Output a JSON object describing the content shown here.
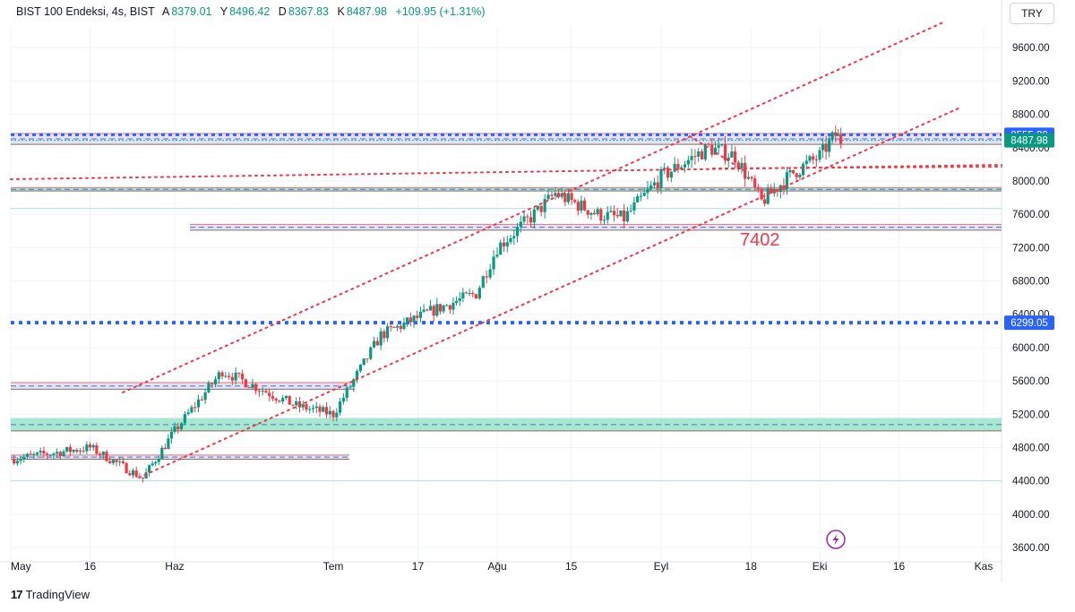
{
  "legend": {
    "symbol": "BIST 100 Endeksi, 4s, BIST",
    "open_label": "A",
    "open": "8379.01",
    "high_label": "Y",
    "high": "8496.42",
    "low_label": "D",
    "low": "8367.83",
    "close_label": "K",
    "close": "8487.98",
    "change": "+109.95 (+1.31%)"
  },
  "currency": "TRY",
  "brand": {
    "logo": "17",
    "name": "TradingView"
  },
  "price_tags": [
    {
      "label": "8555.39",
      "value": 8555.39,
      "color": "#2962ff"
    },
    {
      "label": "8487.98",
      "value": 8487.98,
      "color": "#089981"
    },
    {
      "label": "6299.05",
      "value": 6299.05,
      "color": "#2962ff"
    }
  ],
  "annotation": {
    "text": "7402",
    "color": "#f23645"
  },
  "colors": {
    "up": "#089981",
    "down": "#f23645",
    "zone_fill": "#80e0c0",
    "level_blue": "#2962ff",
    "trend_red": "#f23645"
  },
  "chart_data": {
    "type": "candlestick",
    "title": "BIST 100 Endeksi, 4s, BIST",
    "ylim": [
      3450,
      9850
    ],
    "y_ticks": [
      "9600.00",
      "9200.00",
      "8800.00",
      "8400.00",
      "8000.00",
      "7600.00",
      "7200.00",
      "6800.00",
      "6400.00",
      "6000.00",
      "5600.00",
      "5200.00",
      "4800.00",
      "4400.00",
      "4000.00",
      "3600.00"
    ],
    "x_ticks": [
      "May",
      "16",
      "Haz",
      "Tem",
      "17",
      "Ağu",
      "15",
      "Eyl",
      "18",
      "Eki",
      "16",
      "Kas"
    ],
    "key_points": [
      {
        "date": "May",
        "price": 4660
      },
      {
        "date": "May 16",
        "price": 4800
      },
      {
        "date": "May 26",
        "price": 4430
      },
      {
        "date": "Haz",
        "price": 5000
      },
      {
        "date": "Haz 10",
        "price": 5720
      },
      {
        "date": "Haz 24",
        "price": 5300
      },
      {
        "date": "Tem",
        "price": 5200
      },
      {
        "date": "Tem 10",
        "price": 6150
      },
      {
        "date": "Tem 20",
        "price": 6450
      },
      {
        "date": "Tem 28",
        "price": 6650
      },
      {
        "date": "Ağu",
        "price": 7200
      },
      {
        "date": "Ağu 8",
        "price": 7600
      },
      {
        "date": "Ağu 12",
        "price": 7850
      },
      {
        "date": "Ağu 20",
        "price": 7600
      },
      {
        "date": "Ağu 25",
        "price": 7550
      },
      {
        "date": "Eyl",
        "price": 8050
      },
      {
        "date": "Eyl 10",
        "price": 8400
      },
      {
        "date": "Eyl 15",
        "price": 8300
      },
      {
        "date": "Eyl 20",
        "price": 7750
      },
      {
        "date": "Eyl 26",
        "price": 8100
      },
      {
        "date": "Eki",
        "price": 8300
      },
      {
        "date": "Eki 4",
        "price": 8555
      },
      {
        "date": "Eki 8",
        "price": 8488
      }
    ],
    "last": {
      "open": 8379.01,
      "high": 8496.42,
      "low": 8367.83,
      "close": 8487.98,
      "change": 109.95,
      "change_pct": 1.31
    },
    "horizontal_levels": [
      8555.39,
      8487.98,
      8440,
      7900,
      7670,
      7460,
      7420,
      6299.05,
      5570,
      5520,
      5100,
      4700,
      4400
    ],
    "zones": [
      {
        "from": 5000,
        "to": 5150,
        "fill": "mint"
      },
      {
        "from": 7880,
        "to": 7920,
        "fill": "mint"
      },
      {
        "from": 7410,
        "to": 7480,
        "fill": "lavender"
      },
      {
        "from": 5500,
        "to": 5580,
        "fill": "lavender"
      },
      {
        "from": 4660,
        "to": 4710,
        "fill": "lavender"
      },
      {
        "from": 8440,
        "to": 8570,
        "fill": "lavender"
      }
    ],
    "grid": true
  }
}
